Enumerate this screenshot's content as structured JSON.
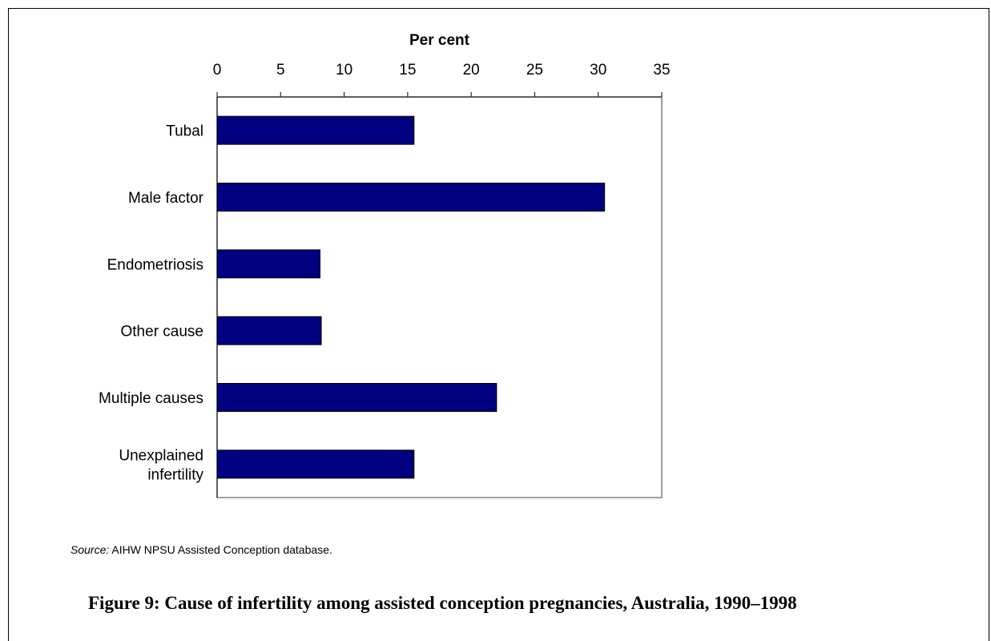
{
  "chart_data": {
    "type": "bar",
    "orientation": "horizontal",
    "xlabel": "Per cent",
    "xlim": [
      0,
      35
    ],
    "xticks": [
      0,
      5,
      10,
      15,
      20,
      25,
      30,
      35
    ],
    "xaxis_position": "top",
    "categories": [
      [
        "Tubal"
      ],
      [
        "Male factor"
      ],
      [
        "Endometriosis"
      ],
      [
        "Other cause"
      ],
      [
        "Multiple causes"
      ],
      [
        "Unexplained",
        "infertility"
      ]
    ],
    "values": [
      15.5,
      30.5,
      8.1,
      8.2,
      22.0,
      15.5
    ],
    "bar_color": "#000080",
    "bar_edge_color": "#000000",
    "grid": false
  },
  "source": {
    "label": "Source:",
    "text": " AIHW NPSU Assisted Conception database."
  },
  "caption": "Figure 9: Cause of infertility among assisted conception pregnancies, Australia, 1990–1998"
}
